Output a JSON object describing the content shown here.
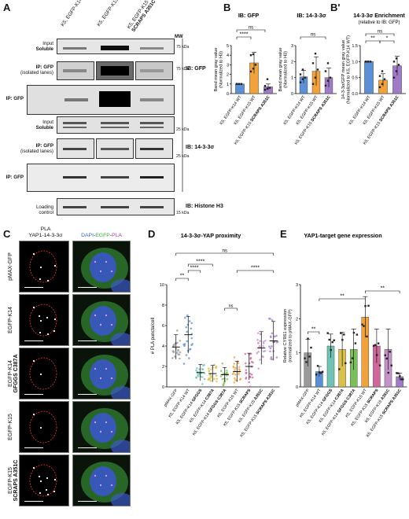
{
  "panels": {
    "A": {
      "letter": "A",
      "lanes": [
        "K5, EGFP-K14 WT",
        "K5, EGFP-K15 WT",
        "K5, EGFP-K15"
      ],
      "lane3_sub": "SCRAPS A351C",
      "mw": "MW",
      "rows": {
        "input1": [
          "Input",
          "Soluble"
        ],
        "ipiso1": [
          "IP: GFP",
          "(isolated lanes)"
        ],
        "ip1": "IP: GFP",
        "input2": [
          "Input",
          "Soluble"
        ],
        "ipiso2": [
          "IP: GFP",
          "(isolated lanes)"
        ],
        "ip2": "IP: GFP",
        "loading": [
          "Loading",
          "control"
        ]
      },
      "kda": [
        "75 kDa",
        "75 kDa",
        "25 kDa",
        "25 kDa",
        "15 kDa"
      ],
      "ib": [
        "IB: GFP",
        "IB: 14-3-3σ",
        "IB: Histone H3"
      ]
    },
    "B": {
      "letter": "B",
      "ylabel": [
        "Band mean gray value",
        "(Normalized to H3)"
      ],
      "ns": "ns",
      "stars": "****"
    },
    "Bp": {
      "letter": "B'",
      "ns": "ns",
      "s1": "**",
      "s2": "*"
    },
    "C": {
      "letter": "C",
      "head1": [
        "PLA",
        "YAP1-14-3-3σ"
      ],
      "head2": {
        "dapi": "DAPI",
        "sep": "-",
        "egfp": "EGFP",
        "sep2": "-",
        "pla": "PLA"
      },
      "rows": [
        "pMAX-GFP",
        "EGFP-K14",
        "EGFP-K14|GFGGS C387A",
        "EGFP-K15",
        "EGFP-K15|SCRAPS A351C"
      ]
    },
    "D": {
      "letter": "D",
      "sig": {
        "s1": "**",
        "s2": "****",
        "s3": "****",
        "s4": "****",
        "ns1": "ns",
        "ns2": "ns"
      }
    },
    "E": {
      "letter": "E",
      "sig": {
        "s1": "**",
        "s2": "**",
        "s3": "**"
      }
    }
  },
  "chart_data": [
    {
      "type": "bar",
      "panel": "B-left",
      "title": "IB: GFP",
      "ylabel": "Band mean gray value (Normalized to H3)",
      "categories": [
        "K5, EGFP-K14 WT",
        "K5, EGFP-K15 WT",
        "K5, EGFP-K15 SCRAPS A351C"
      ],
      "values": [
        1.0,
        3.2,
        0.7
      ],
      "errors": [
        0.0,
        1.1,
        0.3
      ],
      "points": [
        [
          1,
          1,
          1,
          1,
          1
        ],
        [
          2.3,
          2.6,
          3.0,
          4.0,
          4.1
        ],
        [
          0.4,
          0.5,
          0.6,
          0.8,
          1.5
        ]
      ],
      "colors": [
        "#5b8fd6",
        "#f2a23a",
        "#a07bc7"
      ],
      "ylim": [
        0,
        5
      ],
      "yticks": [
        0,
        1,
        2,
        3,
        4,
        5
      ]
    },
    {
      "type": "bar",
      "panel": "B-right",
      "title": "IB: 14-3-3σ",
      "ylabel": "Band mean gray value (Normalized to H3)",
      "categories": [
        "K5, EGFP-K14 WT",
        "K5, EGFP-K15 WT",
        "K5, EGFP-K15 SCRAPS A351C"
      ],
      "values": [
        1.05,
        1.4,
        1.0
      ],
      "errors": [
        0.4,
        0.9,
        0.6
      ],
      "points": [
        [
          0.7,
          0.9,
          1.0,
          1.2,
          1.5
        ],
        [
          0.6,
          1.0,
          1.5,
          1.9,
          2.5
        ],
        [
          0.5,
          0.8,
          1.0,
          1.4,
          1.9
        ]
      ],
      "colors": [
        "#5b8fd6",
        "#f2a23a",
        "#a07bc7"
      ],
      "ylim": [
        0,
        3
      ],
      "yticks": [
        0,
        1,
        2,
        3
      ]
    },
    {
      "type": "bar",
      "panel": "B'",
      "title": "14-3-3σ Enrichment",
      "subtitle": "(relative to IB: GFP)",
      "ylabel": "14-3-3σ/GFP mean gray value (Normalized to K5, EGFP-K14 WT)",
      "categories": [
        "K5, EGFP-K14 WT",
        "K5, EGFP-K15 WT",
        "K5, EGFP-K15 SCRAPS A351C"
      ],
      "values": [
        1.0,
        0.42,
        0.87
      ],
      "errors": [
        0.0,
        0.2,
        0.3
      ],
      "points": [
        [
          1,
          1,
          1,
          1,
          1
        ],
        [
          0.2,
          0.3,
          0.45,
          0.55,
          0.7
        ],
        [
          0.5,
          0.7,
          0.9,
          1.0,
          1.1
        ]
      ],
      "colors": [
        "#5b8fd6",
        "#f2a23a",
        "#a07bc7"
      ],
      "ylim": [
        0,
        1.5
      ],
      "yticks": [
        0.0,
        0.5,
        1.0,
        1.5
      ]
    },
    {
      "type": "scatter",
      "panel": "D",
      "title": "14-3-3σ-YAP proximity",
      "ylabel": "# PLA puncta/cell",
      "categories": [
        "pMAX-GFP",
        "K5, EGFP-K14 WT",
        "K5, EGFP-K14 GFGGS",
        "K5, EGFP-K14 C387A",
        "K5, EGFP-K14 GFGGS C387A",
        "K5, EGFP-K15 WT",
        "K5, EGFP-K15 SCRAPS",
        "K5, EGFP-K15 A351C",
        "K5, EGFP-K15 SCRAPS A351C"
      ],
      "means": [
        3.9,
        5.1,
        1.4,
        1.3,
        1.2,
        1.5,
        2.0,
        3.8,
        4.5
      ],
      "sd": [
        1.2,
        1.8,
        0.8,
        0.8,
        0.7,
        1.0,
        1.3,
        1.6,
        1.9
      ],
      "colors": [
        "#9a9a9a",
        "#5b8fd6",
        "#6ec3b3",
        "#d9c04a",
        "#7bbf5c",
        "#f2a23a",
        "#d0679a",
        "#c593c9",
        "#a07bc7"
      ],
      "ylim": [
        0,
        10
      ],
      "yticks": [
        0,
        2,
        4,
        6,
        8,
        10
      ]
    },
    {
      "type": "bar",
      "panel": "E",
      "title": "YAP1-target gene expression",
      "ylabel": "Relative CYR61 expression (normalized to pMAX-GFP)",
      "categories": [
        "pMAX-GFP",
        "K5, EGFP-K14 WT",
        "K5, EGFP-K14 GFGGS",
        "K5, EGFP-K14 C387A",
        "K5, EGFP-K14 GFGGS C387A",
        "K5, EGFP-K15 WT",
        "K5, EGFP-K15 SCRAPS",
        "K5, EGFP-K15 A351C",
        "K5, EGFP-K15 SCRAPS A351C"
      ],
      "values": [
        1.0,
        0.45,
        1.2,
        1.1,
        1.1,
        2.05,
        1.2,
        1.1,
        0.3
      ],
      "errors": [
        0.4,
        0.15,
        0.35,
        0.5,
        0.6,
        0.6,
        0.5,
        0.6,
        0.1
      ],
      "colors": [
        "#9a9a9a",
        "#5b8fd6",
        "#6ec3b3",
        "#d9c04a",
        "#7bbf5c",
        "#f2a23a",
        "#d0679a",
        "#c593c9",
        "#a07bc7"
      ],
      "ylim": [
        0,
        3
      ],
      "yticks": [
        0,
        1,
        2,
        3
      ]
    }
  ]
}
